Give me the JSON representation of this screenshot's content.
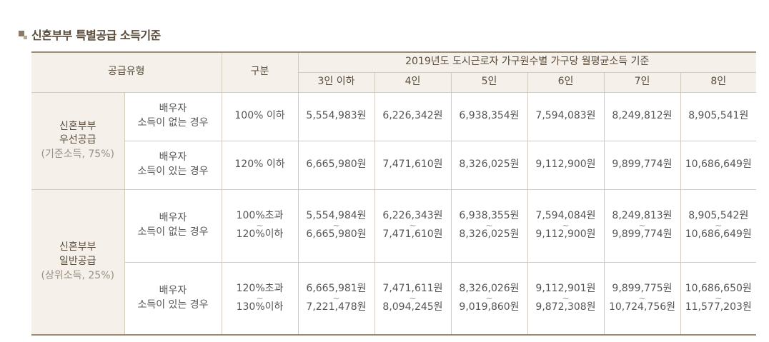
{
  "title": "신혼부부 특별공급 소득기준",
  "header": {
    "supply_type": "공급유형",
    "category": "구분",
    "standard": "2019년도 도시근로자 가구원수별 가구당 월평균소득 기준",
    "households": [
      "3인 이하",
      "4인",
      "5인",
      "6인",
      "7인",
      "8인"
    ]
  },
  "groups": [
    {
      "line1": "신혼부부",
      "line2": "우선공급",
      "note": "(기준소득, 75%)",
      "rows": [
        {
          "sub1": "배우자",
          "sub2": "소득이 없는 경우",
          "cat1": "100% 이하",
          "cat2": "",
          "cells": [
            {
              "a": "5,554,983원",
              "b": ""
            },
            {
              "a": "6,226,342원",
              "b": ""
            },
            {
              "a": "6,938,354원",
              "b": ""
            },
            {
              "a": "7,594,083원",
              "b": ""
            },
            {
              "a": "8,249,812원",
              "b": ""
            },
            {
              "a": "8,905,541원",
              "b": ""
            }
          ]
        },
        {
          "sub1": "배우자",
          "sub2": "소득이 있는 경우",
          "cat1": "120% 이하",
          "cat2": "",
          "cells": [
            {
              "a": "6,665,980원",
              "b": ""
            },
            {
              "a": "7,471,610원",
              "b": ""
            },
            {
              "a": "8,326,025원",
              "b": ""
            },
            {
              "a": "9,112,900원",
              "b": ""
            },
            {
              "a": "9,899,774원",
              "b": ""
            },
            {
              "a": "10,686,649원",
              "b": ""
            }
          ]
        }
      ]
    },
    {
      "line1": "신혼부부",
      "line2": "일반공급",
      "note": "(상위소득, 25%)",
      "rows": [
        {
          "sub1": "배우자",
          "sub2": "소득이 없는 경우",
          "cat1": "100%초과",
          "cat2": "120%이하",
          "cells": [
            {
              "a": "5,554,984원",
              "b": "6,665,980원"
            },
            {
              "a": "6,226,343원",
              "b": "7,471,610원"
            },
            {
              "a": "6,938,355원",
              "b": "8,326,025원"
            },
            {
              "a": "7,594,084원",
              "b": "9,112,900원"
            },
            {
              "a": "8,249,813원",
              "b": "9,899,774원"
            },
            {
              "a": "8,905,542원",
              "b": "10,686,649원"
            }
          ]
        },
        {
          "sub1": "배우자",
          "sub2": "소득이 있는 경우",
          "cat1": "120%초과",
          "cat2": "130%이하",
          "cells": [
            {
              "a": "6,665,981원",
              "b": "7,221,478원"
            },
            {
              "a": "7,471,611원",
              "b": "8,094,245원"
            },
            {
              "a": "8,326,026원",
              "b": "9,019,860원"
            },
            {
              "a": "9,112,901원",
              "b": "9,872,308원"
            },
            {
              "a": "9,899,775원",
              "b": "10,724,756원"
            },
            {
              "a": "10,686,650원",
              "b": "11,577,203원"
            }
          ]
        }
      ]
    }
  ],
  "range_symbol": "~"
}
